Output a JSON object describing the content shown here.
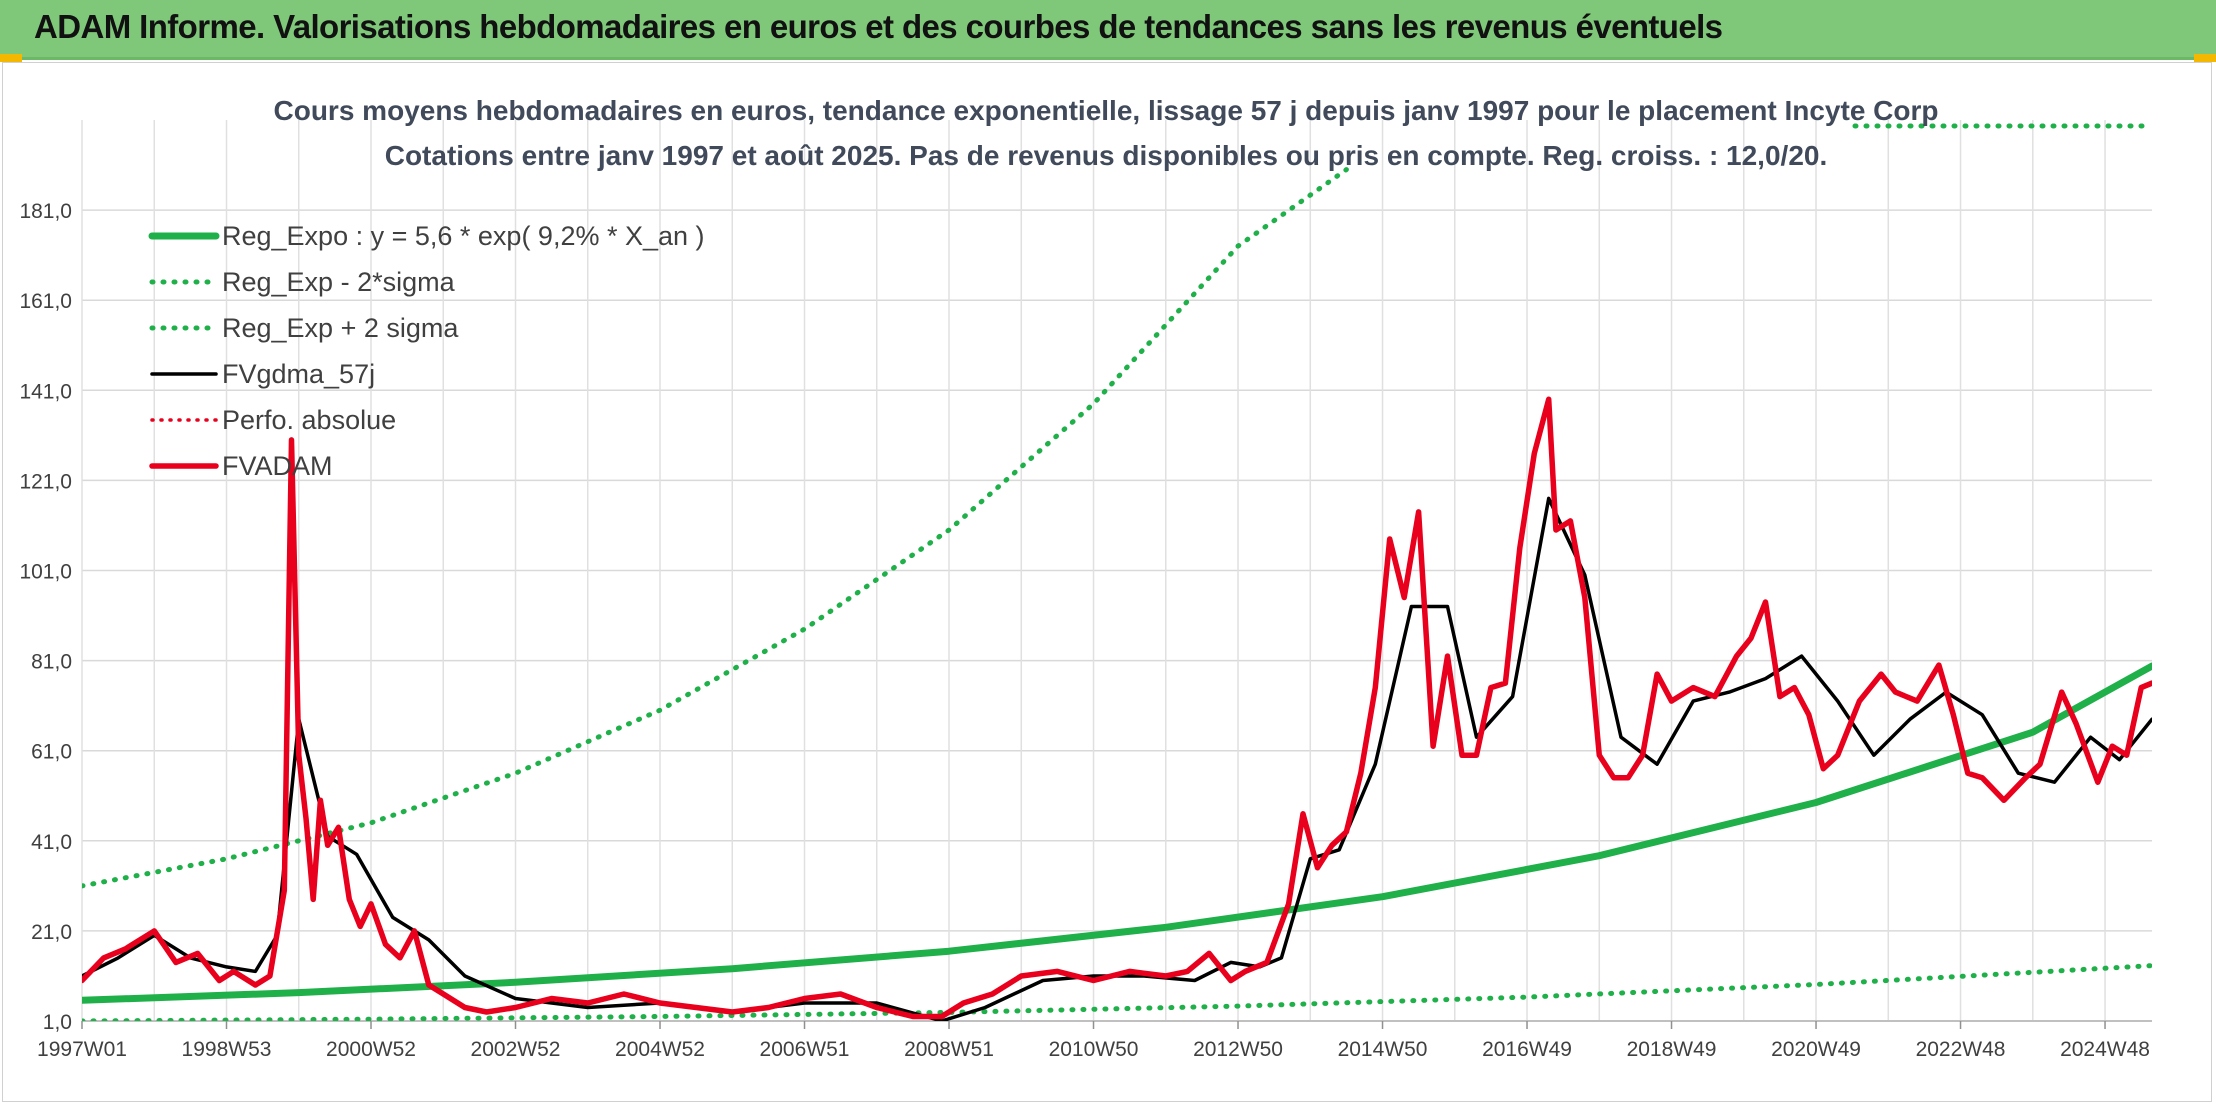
{
  "banner": {
    "title": "ADAM Informe. Valorisations hebdomadaires en euros et des courbes de tendances sans les revenus éventuels"
  },
  "colors": {
    "banner_bg": "#7fc87a",
    "reg_expo": "#1fb04a",
    "sigma": "#1fb04a",
    "gdma": "#000000",
    "perfo": "#e8001c",
    "fvadam": "#e8001c",
    "accent": "#f5b800"
  },
  "chart_data": {
    "type": "line",
    "title": "Cours moyens hebdomadaires en euros, tendance exponentielle, lissage 57 j depuis janv 1997 pour le placement Incyte Corp",
    "subtitle": "Cotations entre janv 1997 et août 2025. Pas de revenus disponibles ou pris en compte. Reg. croiss. : 12,0/20.",
    "xlabel": "",
    "ylabel": "",
    "ylim": [
      1,
      201
    ],
    "y_ticks": [
      "1,0",
      "21,0",
      "41,0",
      "61,0",
      "81,0",
      "101,0",
      "121,0",
      "141,0",
      "161,0",
      "181,0"
    ],
    "x_ticks": [
      "1997W01",
      "1998W53",
      "2000W52",
      "2002W52",
      "2004W52",
      "2006W51",
      "2008W51",
      "2010W50",
      "2012W50",
      "2014W50",
      "2016W49",
      "2018W49",
      "2020W49",
      "2022W48",
      "2024W48"
    ],
    "x_range_years": [
      1997.0,
      2025.65
    ],
    "grid": true,
    "legend_position": "top-left",
    "series": [
      {
        "name": "Reg_Expo : y = 5,6 * exp( 9,2% *  X_an )",
        "style": "solid-thick",
        "x": [
          1997.0,
          2000.0,
          2003.0,
          2006.0,
          2009.0,
          2012.0,
          2015.0,
          2018.0,
          2021.0,
          2024.0,
          2025.65
        ],
        "values": [
          5.6,
          7.3,
          9.6,
          12.6,
          16.5,
          21.8,
          28.6,
          37.7,
          49.5,
          65.1,
          79.8
        ]
      },
      {
        "name": "Reg_Exp - 2*sigma",
        "style": "dotted",
        "x": [
          1997.0,
          2001.0,
          2005.0,
          2009.0,
          2013.0,
          2017.0,
          2021.0,
          2025.65
        ],
        "values": [
          1.0,
          1.4,
          2.0,
          2.9,
          4.3,
          6.3,
          9.1,
          13.3
        ]
      },
      {
        "name": "Reg_Exp + 2 sigma",
        "style": "dotted",
        "x": [
          1997.0,
          1999.0,
          2001.0,
          2003.0,
          2005.0,
          2007.0,
          2009.0,
          2011.0,
          2013.0,
          2014.5
        ],
        "values": [
          31.0,
          37.0,
          45.0,
          56.0,
          70.0,
          88.0,
          110.0,
          138.0,
          173.0,
          190.0
        ]
      },
      {
        "name": "FVgdma_57j",
        "style": "solid",
        "x": [
          1997.0,
          1997.5,
          1998.0,
          1998.5,
          1999.0,
          1999.4,
          1999.7,
          2000.0,
          2000.4,
          2000.8,
          2001.3,
          2001.8,
          2002.3,
          2003.0,
          2004.0,
          2005.0,
          2006.0,
          2007.0,
          2008.0,
          2008.9,
          2009.5,
          2010.3,
          2011.0,
          2011.7,
          2012.4,
          2012.9,
          2013.3,
          2013.6,
          2014.0,
          2014.4,
          2014.9,
          2015.4,
          2015.9,
          2016.3,
          2016.8,
          2017.3,
          2017.8,
          2018.3,
          2018.8,
          2019.3,
          2019.8,
          2020.3,
          2020.8,
          2021.3,
          2021.8,
          2022.3,
          2022.8,
          2023.3,
          2023.8,
          2024.3,
          2024.8,
          2025.2,
          2025.65
        ],
        "values": [
          11,
          15,
          20,
          15,
          13,
          12,
          20,
          68,
          42,
          38,
          24,
          19,
          11,
          6,
          4,
          5,
          3,
          5,
          5,
          1,
          4,
          10,
          11,
          11,
          10,
          14,
          13,
          15,
          37,
          39,
          58,
          93,
          93,
          64,
          73,
          117,
          100,
          64,
          58,
          72,
          74,
          77,
          82,
          72,
          60,
          68,
          74,
          69,
          56,
          54,
          64,
          59,
          68
        ]
      },
      {
        "name": "Perfo. absolue",
        "style": "dotted-red",
        "x": [],
        "values": []
      },
      {
        "name": "FVADAM",
        "style": "solid-thick-red",
        "x": [
          1997.0,
          1997.3,
          1997.6,
          1998.0,
          1998.3,
          1998.6,
          1998.9,
          1999.1,
          1999.4,
          1999.6,
          1999.8,
          1999.9,
          2000.0,
          2000.1,
          2000.2,
          2000.3,
          2000.4,
          2000.55,
          2000.7,
          2000.85,
          2001.0,
          2001.2,
          2001.4,
          2001.6,
          2001.8,
          2002.0,
          2002.3,
          2002.6,
          2003.0,
          2003.5,
          2004.0,
          2004.5,
          2005.0,
          2005.5,
          2006.0,
          2006.5,
          2007.0,
          2007.5,
          2008.0,
          2008.5,
          2008.9,
          2009.2,
          2009.6,
          2010.0,
          2010.5,
          2011.0,
          2011.5,
          2012.0,
          2012.3,
          2012.6,
          2012.9,
          2013.1,
          2013.4,
          2013.7,
          2013.9,
          2014.1,
          2014.3,
          2014.5,
          2014.7,
          2014.9,
          2015.1,
          2015.3,
          2015.5,
          2015.7,
          2015.9,
          2016.1,
          2016.3,
          2016.5,
          2016.7,
          2016.9,
          2017.1,
          2017.3,
          2017.4,
          2017.6,
          2017.8,
          2018.0,
          2018.2,
          2018.4,
          2018.6,
          2018.8,
          2019.0,
          2019.3,
          2019.6,
          2019.9,
          2020.1,
          2020.3,
          2020.5,
          2020.7,
          2020.9,
          2021.1,
          2021.3,
          2021.6,
          2021.9,
          2022.1,
          2022.4,
          2022.7,
          2022.9,
          2023.1,
          2023.3,
          2023.6,
          2023.9,
          2024.1,
          2024.4,
          2024.6,
          2024.9,
          2025.1,
          2025.3,
          2025.5,
          2025.65
        ],
        "values": [
          10,
          15,
          17,
          21,
          14,
          16,
          10,
          12,
          9,
          11,
          30,
          130,
          60,
          46,
          28,
          50,
          40,
          44,
          28,
          22,
          27,
          18,
          15,
          21,
          9,
          7,
          4,
          3,
          4,
          6,
          5,
          7,
          5,
          4,
          3,
          4,
          6,
          7,
          4,
          2,
          2,
          5,
          7,
          11,
          12,
          10,
          12,
          11,
          12,
          16,
          10,
          12,
          14,
          27,
          47,
          35,
          40,
          43,
          56,
          75,
          108,
          95,
          114,
          62,
          82,
          60,
          60,
          75,
          76,
          106,
          127,
          139,
          110,
          112,
          95,
          60,
          55,
          55,
          60,
          78,
          72,
          75,
          73,
          82,
          86,
          94,
          73,
          75,
          69,
          57,
          60,
          72,
          78,
          74,
          72,
          80,
          69,
          56,
          55,
          50,
          55,
          58,
          74,
          67,
          54,
          62,
          60,
          75,
          76
        ]
      }
    ]
  }
}
